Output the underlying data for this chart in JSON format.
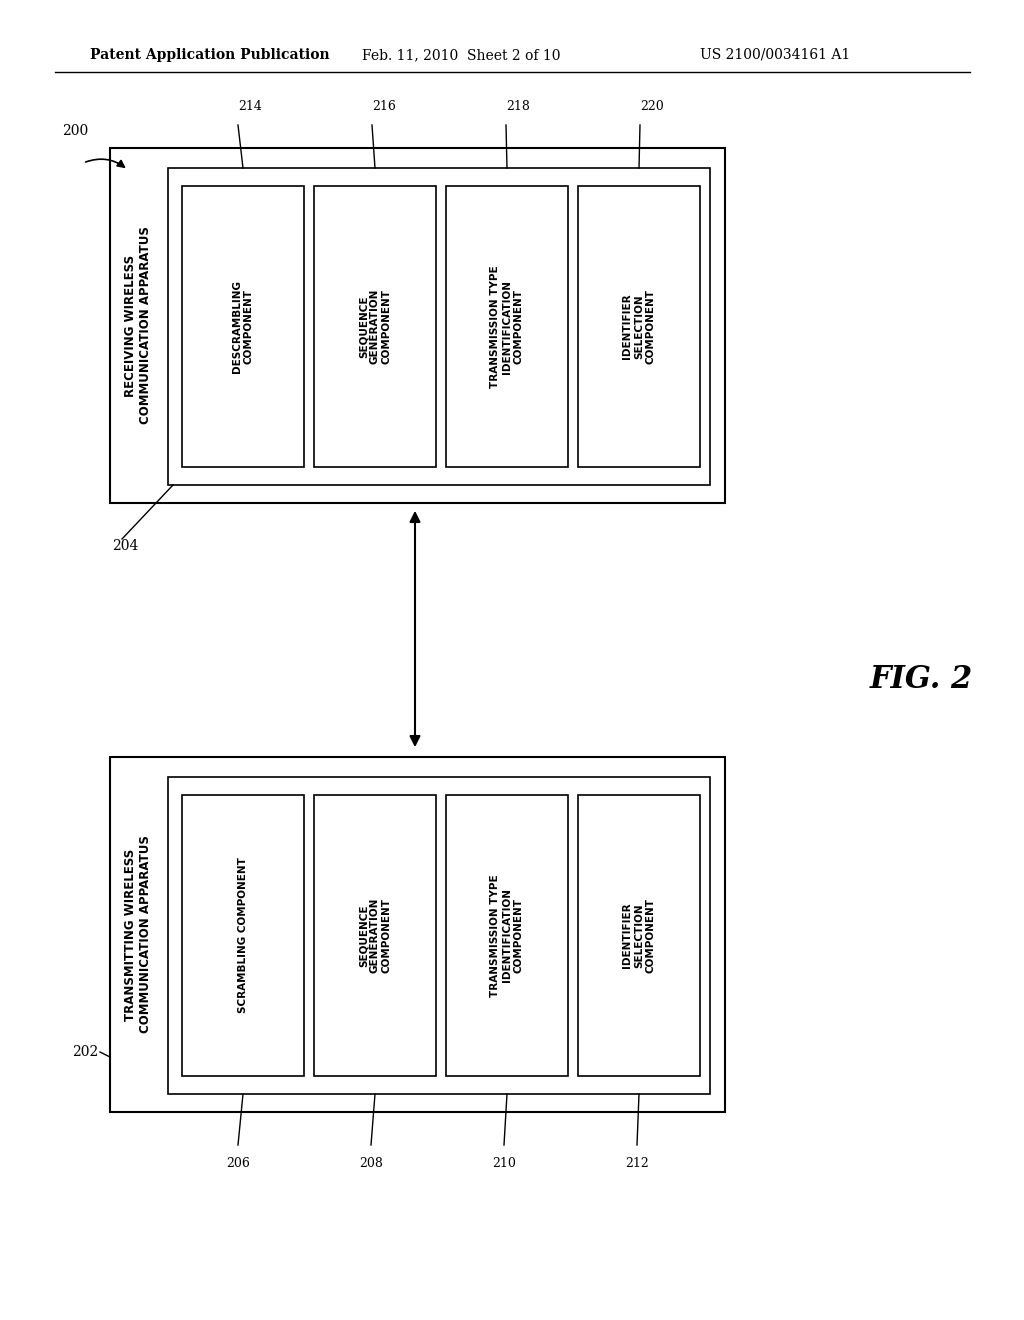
{
  "background_color": "#ffffff",
  "header_left": "Patent Application Publication",
  "header_mid": "Feb. 11, 2010  Sheet 2 of 10",
  "header_right": "US 2100/0034161 A1",
  "fig_label": "FIG. 2",
  "top_box": {
    "outer_label": "200",
    "inner_label": "204",
    "outer_title": "RECEIVING WIRELESS\nCOMMUNICATION APPARATUS",
    "components": [
      {
        "id": "214",
        "text": "DESCRAMBLING\nCOMPONENT"
      },
      {
        "id": "216",
        "text": "SEQUENCE\nGENERATION\nCOMPONENT"
      },
      {
        "id": "218",
        "text": "TRANSMISSION TYPE\nIDENTIFICATION\nCOMPONENT"
      },
      {
        "id": "220",
        "text": "IDENTIFIER\nSELECTION\nCOMPONENT"
      }
    ]
  },
  "bottom_box": {
    "outer_label": "202",
    "outer_title": "TRANSMITTING WIRELESS\nCOMMUNICATION APPARATUS",
    "components": [
      {
        "id": "206",
        "text": "SCRAMBLING COMPONENT"
      },
      {
        "id": "208",
        "text": "SEQUENCE\nGENERATION\nCOMPONENT"
      },
      {
        "id": "210",
        "text": "TRANSMISSION TYPE\nIDENTIFICATION\nCOMPONENT"
      },
      {
        "id": "212",
        "text": "IDENTIFIER\nSELECTION\nCOMPONENT"
      }
    ]
  }
}
